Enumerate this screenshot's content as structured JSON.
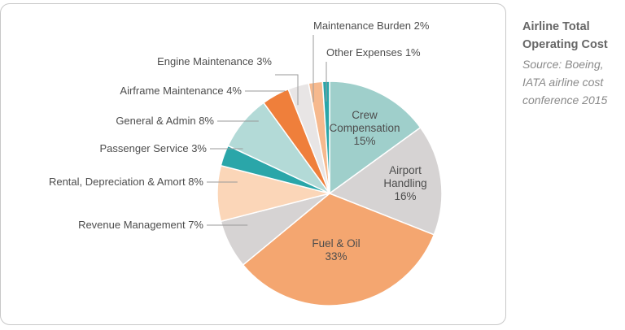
{
  "side_panel": {
    "title_line1": "Airline Total",
    "title_line2": "Operating Cost",
    "source_line1": "Source: Boeing,",
    "source_line2": "IATA airline cost",
    "source_line3": "conference 2015"
  },
  "chart_data": {
    "type": "pie",
    "title": "Airline Total Operating Cost",
    "slices": [
      {
        "label": "Crew Compensation",
        "value": 15,
        "color": "#9fcfcb",
        "label_text": [
          "Crew",
          "Compensation",
          "15%"
        ]
      },
      {
        "label": "Airport Handling",
        "value": 16,
        "color": "#d6d3d3",
        "label_text": [
          "Airport",
          "Handling",
          "16%"
        ]
      },
      {
        "label": "Fuel & Oil",
        "value": 33,
        "color": "#f4a670",
        "label_text": [
          "Fuel & Oil",
          "33%"
        ]
      },
      {
        "label": "Revenue Management",
        "value": 7,
        "color": "#d6d3d3",
        "label_text": [
          "Revenue Management 7%"
        ]
      },
      {
        "label": "Rental, Depreciation & Amort",
        "value": 8,
        "color": "#fbd6b8",
        "label_text": [
          "Rental, Depreciation & Amort 8%"
        ]
      },
      {
        "label": "Passenger Service",
        "value": 3,
        "color": "#2aa6a9",
        "label_text": [
          "Passenger Service 3%"
        ]
      },
      {
        "label": "General & Admin",
        "value": 8,
        "color": "#b3dad7",
        "label_text": [
          "General & Admin 8%"
        ]
      },
      {
        "label": "Airframe Maintenance",
        "value": 4,
        "color": "#ef7f3b",
        "label_text": [
          "Airframe Maintenance 4%"
        ]
      },
      {
        "label": "Engine Maintenance",
        "value": 3,
        "color": "#e8e5e5",
        "label_text": [
          "Engine Maintenance 3%"
        ]
      },
      {
        "label": "Maintenance Burden",
        "value": 2,
        "color": "#f6b98e",
        "label_text": [
          "Maintenance Burden 2%"
        ]
      },
      {
        "label": "Other Expenses",
        "value": 1,
        "color": "#2aa6a9",
        "label_text": [
          "Other Expenses 1%"
        ]
      }
    ]
  }
}
